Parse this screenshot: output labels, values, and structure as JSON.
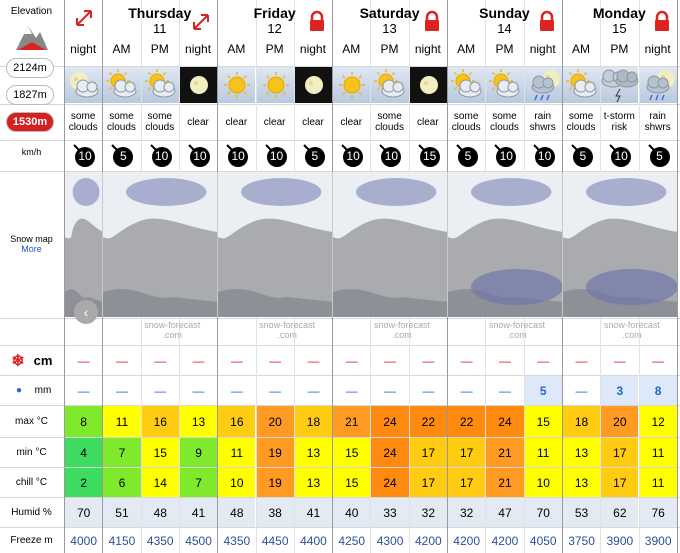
{
  "sidebar": {
    "elevation": "Elevation",
    "heights": [
      "2124m",
      "1827m",
      "1530m"
    ],
    "wind_unit": "km/h",
    "snow_map": "Snow map",
    "more": "More"
  },
  "days": [
    {
      "name": "Thursday",
      "date": 11
    },
    {
      "name": "Friday",
      "date": 12
    },
    {
      "name": "Saturday",
      "date": 13
    },
    {
      "name": "Sunday",
      "date": 14
    },
    {
      "name": "Monday",
      "date": 15
    }
  ],
  "periods": [
    "night",
    "AM",
    "PM",
    "night",
    "AM",
    "PM",
    "night",
    "AM",
    "PM",
    "night",
    "AM",
    "PM",
    "night",
    "AM",
    "PM",
    "night"
  ],
  "descriptions": [
    "some clouds",
    "some clouds",
    "some clouds",
    "clear",
    "clear",
    "clear",
    "clear",
    "clear",
    "some clouds",
    "clear",
    "some clouds",
    "some clouds",
    "rain shwrs",
    "some clouds",
    "t-storm risk",
    "rain shwrs"
  ],
  "wind": [
    10,
    5,
    10,
    10,
    10,
    10,
    5,
    10,
    10,
    15,
    5,
    10,
    10,
    5,
    10,
    5
  ],
  "watermark": [
    "snow-forecast",
    ".com"
  ],
  "rows": [
    {
      "label": "cm",
      "values": [
        "—",
        "—",
        "—",
        "—",
        "—",
        "—",
        "—",
        "—",
        "—",
        "—",
        "—",
        "—",
        "—",
        "—",
        "—",
        "—"
      ]
    },
    {
      "label": "mm",
      "values": [
        "—",
        "—",
        "—",
        "—",
        "—",
        "—",
        "—",
        "—",
        "—",
        "—",
        "—",
        "—",
        5,
        "—",
        3,
        8
      ]
    },
    {
      "label": "max °C",
      "values": [
        8,
        11,
        16,
        13,
        16,
        20,
        18,
        21,
        24,
        22,
        22,
        24,
        15,
        18,
        20,
        12
      ]
    },
    {
      "label": "min °C",
      "values": [
        4,
        7,
        15,
        9,
        11,
        19,
        13,
        15,
        24,
        17,
        17,
        21,
        11,
        13,
        17,
        11
      ]
    },
    {
      "label": "chill °C",
      "values": [
        2,
        6,
        14,
        7,
        10,
        19,
        13,
        15,
        24,
        17,
        17,
        21,
        10,
        13,
        17,
        11
      ]
    },
    {
      "label": "Humid %",
      "values": [
        70,
        51,
        48,
        41,
        48,
        38,
        41,
        40,
        33,
        32,
        32,
        47,
        70,
        53,
        62,
        76
      ]
    },
    {
      "label": "Freeze m",
      "values": [
        4000,
        4150,
        4350,
        4500,
        4350,
        4450,
        4400,
        4250,
        4300,
        4200,
        4200,
        4200,
        4050,
        3750,
        3900,
        3900
      ]
    }
  ]
}
